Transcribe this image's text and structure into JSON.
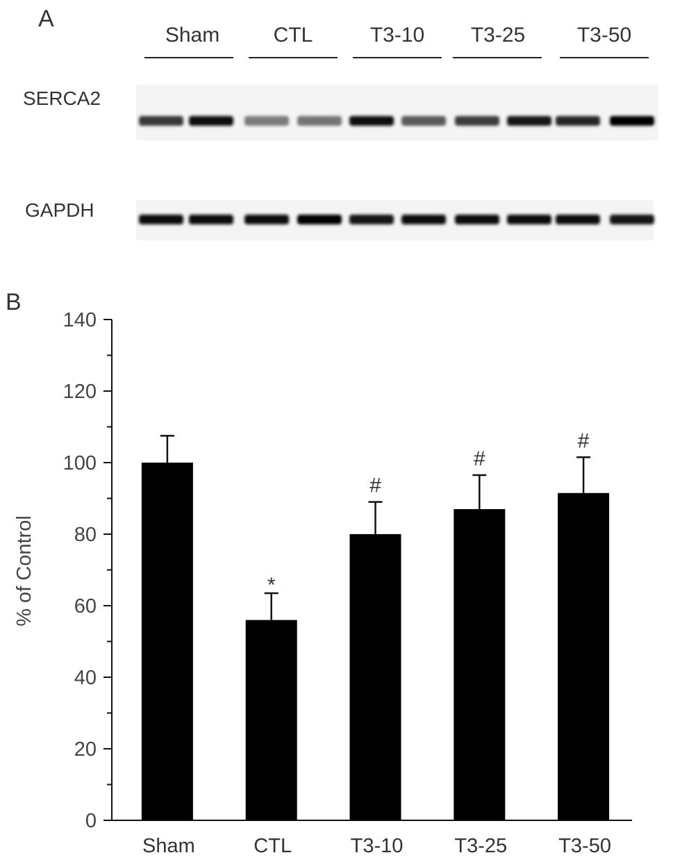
{
  "panels": {
    "a": "A",
    "b": "B"
  },
  "blot": {
    "groups": [
      "Sham",
      "CTL",
      "T3-10",
      "T3-25",
      "T3-50"
    ],
    "rows": [
      "SERCA2",
      "GAPDH"
    ],
    "lanes_per_group": 2,
    "band_intensity": {
      "SERCA2": [
        0.72,
        0.92,
        0.38,
        0.42,
        0.95,
        0.55,
        0.7,
        0.9,
        0.8,
        1.0
      ],
      "GAPDH": [
        0.92,
        0.95,
        0.93,
        0.97,
        0.9,
        0.95,
        0.92,
        0.95,
        0.92,
        0.9
      ]
    }
  },
  "chart_data": {
    "type": "bar",
    "categories": [
      "Sham",
      "CTL",
      "T3-10",
      "T3-25",
      "T3-50"
    ],
    "values": [
      100,
      56,
      80,
      87,
      91.5
    ],
    "errors": [
      7.5,
      7.5,
      9,
      9.5,
      10
    ],
    "annotations": [
      "",
      "*",
      "#",
      "#",
      "#"
    ],
    "ylabel": "% of Control",
    "ylim": [
      0,
      140
    ],
    "yticks": [
      0,
      20,
      40,
      60,
      80,
      100,
      120,
      140
    ],
    "bar_color": "#000000",
    "grid": false
  }
}
